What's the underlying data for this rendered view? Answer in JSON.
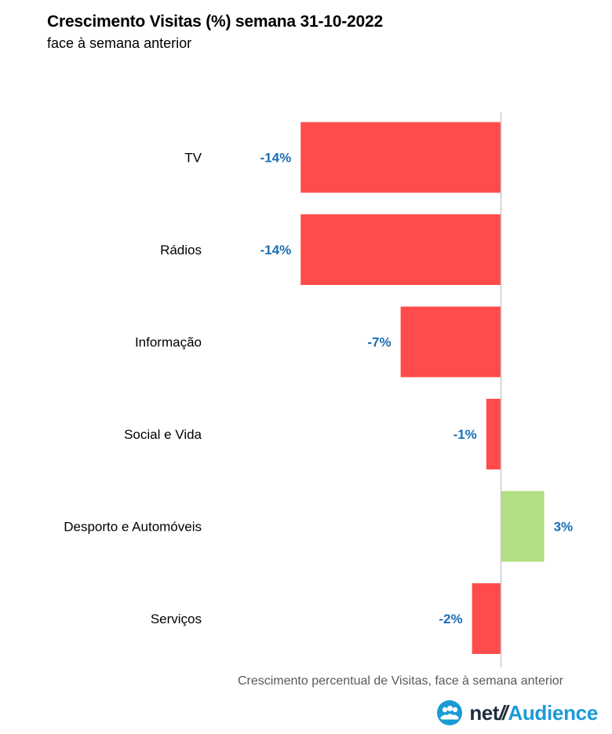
{
  "header": {
    "title": "Crescimento Visitas (%) semana 31-10-2022",
    "subtitle": "face à semana anterior"
  },
  "chart_data": {
    "type": "bar",
    "orientation": "horizontal",
    "categories": [
      "TV",
      "Rádios",
      "Informação",
      "Social e Vida",
      "Desporto e Automóveis",
      "Serviços"
    ],
    "values": [
      -14,
      -14,
      -7,
      -1,
      3,
      -2
    ],
    "value_labels": [
      "-14%",
      "-14%",
      "-7%",
      "-1%",
      "3%",
      "-2%"
    ],
    "title": "Crescimento Visitas (%) semana 31-10-2022",
    "subtitle": "face à semana anterior",
    "xlabel": "Crescimento percentual de Visitas, face à semana anterior",
    "ylabel": "",
    "unit": "%",
    "grid": false,
    "legend": "none",
    "colors": {
      "negative": "#ff4b4b",
      "positive": "#b3de81",
      "value_label": "#1b6fb5",
      "category_label": "#000000",
      "zero_line": "#c8c8c8"
    }
  },
  "footer": {
    "axis_caption": "Crescimento percentual de Visitas, face à semana anterior",
    "logo": {
      "prefix": "net",
      "slash": "//",
      "brand": "Audience",
      "icon": "audience-people-icon",
      "colors": {
        "prefix": "#1f2d3d",
        "brand": "#1a9ad6"
      }
    }
  }
}
